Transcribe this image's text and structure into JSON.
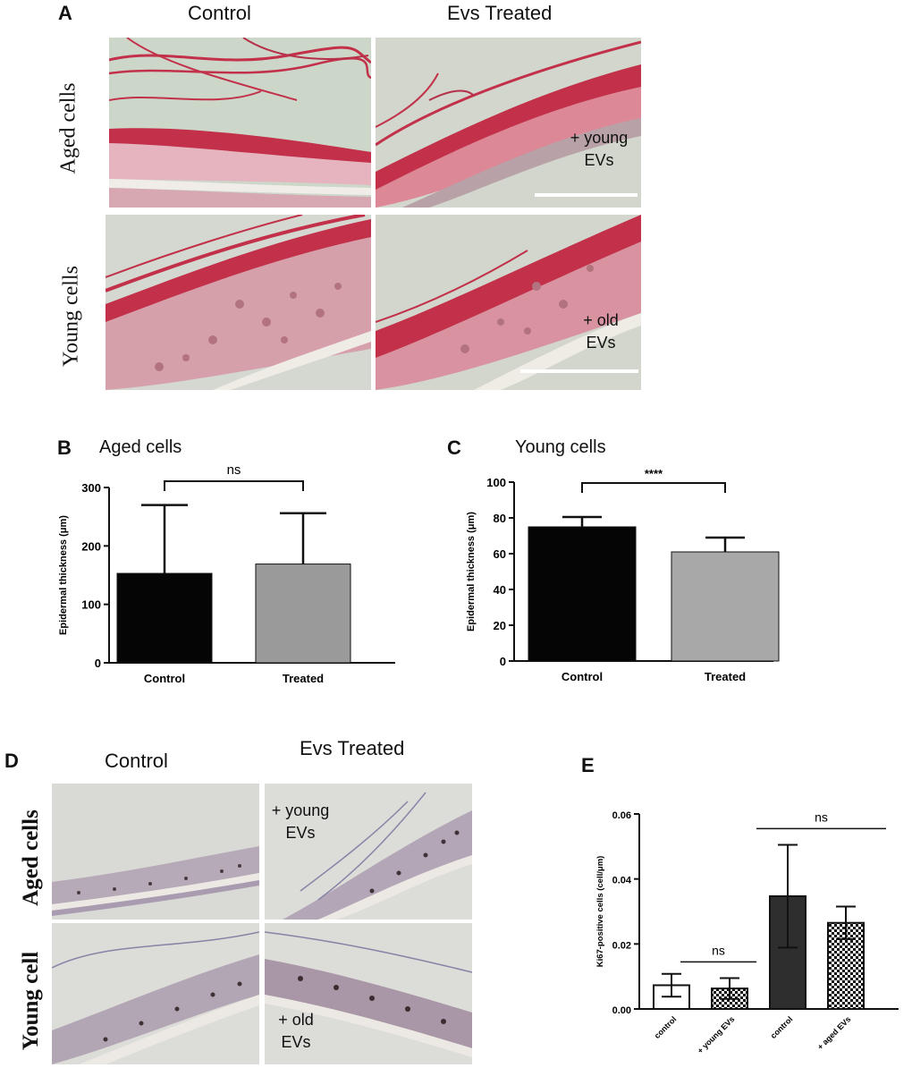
{
  "figure": {
    "panel_a": {
      "letter": "A",
      "col_control": "Control",
      "col_treated": "Evs Treated",
      "row_aged": "Aged cells",
      "row_young": "Young cells",
      "label_young_evs_1": "+ young",
      "label_young_evs_2": "EVs",
      "label_old_evs_1": "+ old",
      "label_old_evs_2": "EVs"
    },
    "panel_b": {
      "letter": "B",
      "title": "Aged cells"
    },
    "panel_c": {
      "letter": "C",
      "title": "Young cells"
    },
    "panel_d": {
      "letter": "D",
      "col_control": "Control",
      "col_treated": "Evs Treated",
      "row_aged": "Aged cells",
      "row_young": "Young cell",
      "label_young_evs_1": "+ young",
      "label_young_evs_2": "EVs",
      "label_old_evs_1": "+ old",
      "label_old_evs_2": "EVs"
    },
    "panel_e": {
      "letter": "E"
    },
    "colors": {
      "he_stain": "#c2304a",
      "he_light": "#e7b7bf",
      "ihc_stain": "#9c8fb4",
      "micro_bg": "#d6dcd2"
    }
  },
  "chart_data": [
    {
      "id": "B",
      "type": "bar",
      "title": "Aged cells",
      "xlabel": "",
      "ylabel": "Epidermal thickness (μm)",
      "categories": [
        "Control",
        "Treated"
      ],
      "values": [
        153,
        169
      ],
      "errors": [
        117,
        87
      ],
      "colors": [
        "#050505",
        "#9a9a9a"
      ],
      "ylim": [
        0,
        300
      ],
      "yticks": [
        0,
        100,
        200,
        300
      ],
      "significance": "ns"
    },
    {
      "id": "C",
      "type": "bar",
      "title": "Young cells",
      "xlabel": "",
      "ylabel": "Epidermal thickness (μm)",
      "categories": [
        "Control",
        "Treated"
      ],
      "values": [
        75,
        61
      ],
      "errors": [
        5.5,
        8
      ],
      "colors": [
        "#050505",
        "#a8a8a8"
      ],
      "ylim": [
        0,
        100
      ],
      "yticks": [
        0,
        20,
        40,
        60,
        80,
        100
      ],
      "significance": "****"
    },
    {
      "id": "E",
      "type": "bar",
      "title": "",
      "xlabel": "",
      "ylabel": "Ki67-positive cells (cell/μm)",
      "categories": [
        "control",
        "+ young EVs",
        "control",
        "+ aged EVs"
      ],
      "values": [
        0.0073,
        0.0063,
        0.0347,
        0.0265
      ],
      "errors": [
        0.0035,
        0.0032,
        0.0158,
        0.005
      ],
      "fills": [
        "white",
        "checker",
        "dark",
        "checker"
      ],
      "ylim": [
        0,
        0.06
      ],
      "yticks": [
        "0.00",
        "0.02",
        "0.04",
        "0.06"
      ],
      "significance": [
        "ns",
        "ns"
      ]
    }
  ]
}
